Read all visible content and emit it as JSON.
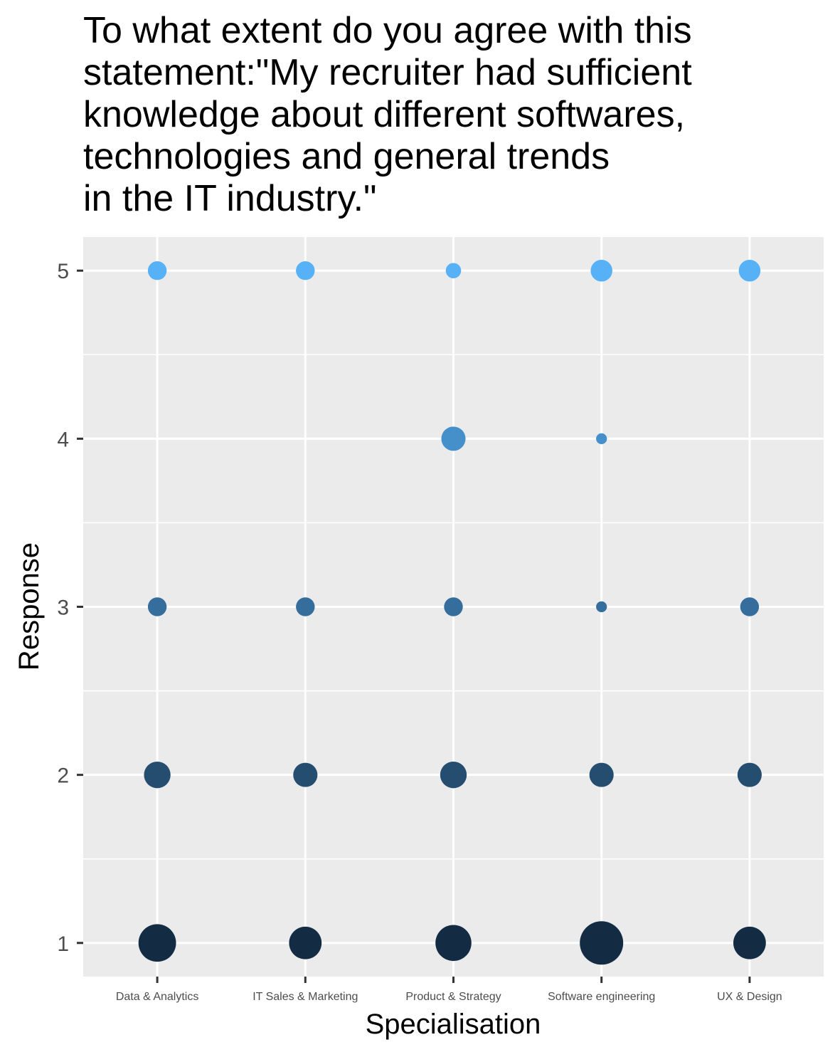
{
  "chart_data": {
    "type": "scatter",
    "title": "To what extent do you agree with this\nstatement:\"My recruiter had sufficient\nknowledge about different softwares,\ntechnologies and general trends\nin the IT industry.\"",
    "xlabel": "Specialisation",
    "ylabel": "Response",
    "categories": [
      "Data & Analytics",
      "IT Sales & Marketing",
      "Product & Strategy",
      "Software engineering",
      "UX & Design"
    ],
    "ylim": [
      0.8,
      5.2
    ],
    "yticks": [
      "1",
      "2",
      "3",
      "4",
      "5"
    ],
    "grid": true,
    "background": "#ebebeb",
    "color_scale": {
      "low": "#132b43",
      "high": "#56b1f7",
      "by": "Response"
    },
    "size_note": "point area proportional to count of responses",
    "points": [
      {
        "category": "Data & Analytics",
        "response": 5,
        "size": 3
      },
      {
        "category": "Data & Analytics",
        "response": 3,
        "size": 3
      },
      {
        "category": "Data & Analytics",
        "response": 2,
        "size": 6
      },
      {
        "category": "Data & Analytics",
        "response": 1,
        "size": 12
      },
      {
        "category": "IT Sales & Marketing",
        "response": 5,
        "size": 3
      },
      {
        "category": "IT Sales & Marketing",
        "response": 3,
        "size": 3
      },
      {
        "category": "IT Sales & Marketing",
        "response": 2,
        "size": 5
      },
      {
        "category": "IT Sales & Marketing",
        "response": 1,
        "size": 9
      },
      {
        "category": "Product & Strategy",
        "response": 5,
        "size": 2
      },
      {
        "category": "Product & Strategy",
        "response": 4,
        "size": 5
      },
      {
        "category": "Product & Strategy",
        "response": 3,
        "size": 3
      },
      {
        "category": "Product & Strategy",
        "response": 2,
        "size": 6
      },
      {
        "category": "Product & Strategy",
        "response": 1,
        "size": 11
      },
      {
        "category": "Software engineering",
        "response": 5,
        "size": 4
      },
      {
        "category": "Software engineering",
        "response": 4,
        "size": 1
      },
      {
        "category": "Software engineering",
        "response": 3,
        "size": 1
      },
      {
        "category": "Software engineering",
        "response": 2,
        "size": 5
      },
      {
        "category": "Software engineering",
        "response": 1,
        "size": 16
      },
      {
        "category": "UX & Design",
        "response": 5,
        "size": 4
      },
      {
        "category": "UX & Design",
        "response": 3,
        "size": 3
      },
      {
        "category": "UX & Design",
        "response": 2,
        "size": 5
      },
      {
        "category": "UX & Design",
        "response": 1,
        "size": 9
      }
    ]
  }
}
